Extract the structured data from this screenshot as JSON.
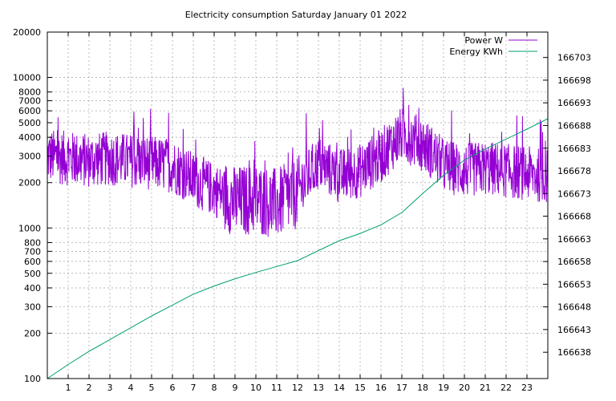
{
  "chart_data": {
    "type": "line",
    "title": "Electricity consumption Saturday January 01 2022",
    "x_axis": {
      "range": [
        0,
        24
      ],
      "ticks": [
        1,
        2,
        3,
        4,
        5,
        6,
        7,
        8,
        9,
        10,
        11,
        12,
        13,
        14,
        15,
        16,
        17,
        18,
        19,
        20,
        21,
        22,
        23
      ],
      "grid": true
    },
    "y_axis_left": {
      "scale": "log",
      "range": [
        100,
        20000
      ],
      "ticks": [
        {
          "value": 100,
          "label": "100"
        },
        {
          "value": 200,
          "label": "200"
        },
        {
          "value": 300,
          "label": "300"
        },
        {
          "value": 400,
          "label": "400"
        },
        {
          "value": 500,
          "label": "500"
        },
        {
          "value": 600,
          "label": "600"
        },
        {
          "value": 700,
          "label": "700"
        },
        {
          "value": 800,
          "label": "800"
        },
        {
          "value": 1000,
          "label": "1000"
        },
        {
          "value": 2000,
          "label": "2000"
        },
        {
          "value": 3000,
          "label": "3000"
        },
        {
          "value": 4000,
          "label": "4000"
        },
        {
          "value": 5000,
          "label": "5000"
        },
        {
          "value": 6000,
          "label": "6000"
        },
        {
          "value": 7000,
          "label": "7000"
        },
        {
          "value": 8000,
          "label": "8000"
        },
        {
          "value": 10000,
          "label": "10000"
        },
        {
          "value": 20000,
          "label": "20000"
        }
      ],
      "grid": true
    },
    "y_axis_right": {
      "scale": "linear",
      "range": [
        166632.2,
        166708.6
      ],
      "ticks": [
        166638,
        166643,
        166648,
        166653,
        166658,
        166663,
        166668,
        166673,
        166678,
        166683,
        166688,
        166693,
        166698,
        166703
      ]
    },
    "legend": {
      "position": "top-right"
    },
    "series": [
      {
        "name": "Power W",
        "axis": "left",
        "color": "#9400d3",
        "hourly_profile": [
          [
            0,
            3000
          ],
          [
            1,
            2900
          ],
          [
            2,
            2800
          ],
          [
            3,
            2900
          ],
          [
            4,
            2800
          ],
          [
            5,
            2700
          ],
          [
            6,
            2600
          ],
          [
            7,
            2100
          ],
          [
            8,
            1800
          ],
          [
            9,
            1500
          ],
          [
            10,
            1550
          ],
          [
            11,
            1450
          ],
          [
            12,
            1700
          ],
          [
            13,
            2700
          ],
          [
            14,
            2200
          ],
          [
            15,
            2400
          ],
          [
            16,
            3000
          ],
          [
            17,
            4200
          ],
          [
            18,
            3600
          ],
          [
            19,
            2600
          ],
          [
            20,
            2400
          ],
          [
            21,
            2500
          ],
          [
            22,
            2400
          ],
          [
            23,
            2300
          ],
          [
            24,
            2200
          ]
        ]
      },
      {
        "name": "Energy KWh",
        "axis": "right",
        "color": "#009e73",
        "points": [
          [
            0,
            166632.2
          ],
          [
            1,
            166635.3
          ],
          [
            2,
            166638.2
          ],
          [
            3,
            166640.8
          ],
          [
            4,
            166643.4
          ],
          [
            5,
            166646.0
          ],
          [
            6,
            166648.4
          ],
          [
            7,
            166650.8
          ],
          [
            8,
            166652.6
          ],
          [
            9,
            166654.2
          ],
          [
            10,
            166655.6
          ],
          [
            11,
            166656.9
          ],
          [
            12,
            166658.2
          ],
          [
            13,
            166660.4
          ],
          [
            14,
            166662.6
          ],
          [
            15,
            166664.2
          ],
          [
            16,
            166666.1
          ],
          [
            17,
            166668.8
          ],
          [
            18,
            166673.0
          ],
          [
            19,
            166677.0
          ],
          [
            20,
            166680.4
          ],
          [
            21,
            166682.8
          ],
          [
            22,
            166685.0
          ],
          [
            23,
            166687.2
          ],
          [
            24,
            166689.5
          ]
        ]
      }
    ]
  }
}
